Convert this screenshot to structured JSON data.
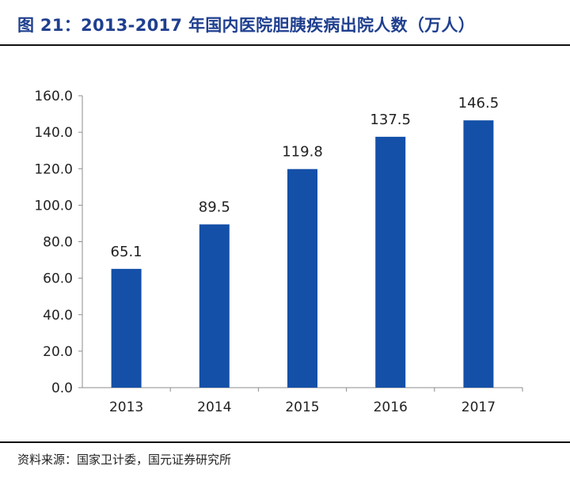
{
  "header": {
    "title": "图 21：2013-2017 年国内医院胆胰疾病出院人数（万人）"
  },
  "footer": {
    "source": "资料来源：国家卫计委，国元证券研究所"
  },
  "colors": {
    "bar": "#1450a8",
    "title": "#1f3f8f",
    "axis": "#8c8c8c"
  },
  "chart_data": {
    "type": "bar",
    "categories": [
      "2013",
      "2014",
      "2015",
      "2016",
      "2017"
    ],
    "values": [
      65.1,
      89.5,
      119.8,
      137.5,
      146.5
    ],
    "data_labels": [
      "65.1",
      "89.5",
      "119.8",
      "137.5",
      "146.5"
    ],
    "yticks": [
      "0.0",
      "20.0",
      "40.0",
      "60.0",
      "80.0",
      "100.0",
      "120.0",
      "140.0",
      "160.0"
    ],
    "ylim": [
      0,
      160
    ],
    "ystep": 20,
    "grid": false,
    "legend": "none"
  }
}
